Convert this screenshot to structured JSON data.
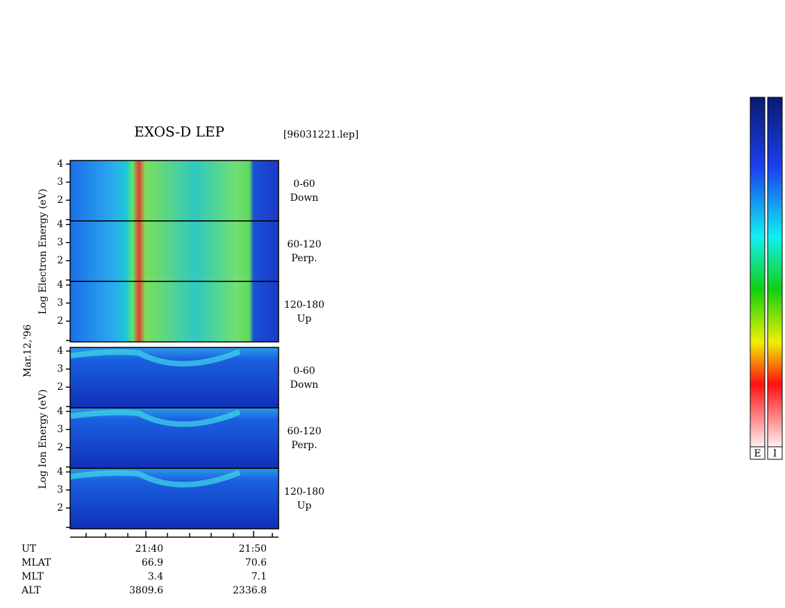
{
  "title": "EXOS-D LEP",
  "file": "[96031221.lep]",
  "date": "Mar.12,'96",
  "electron_axis_label": "Log  Electron  Energy (eV)",
  "ion_axis_label": "Log  Ion  Energy (eV)",
  "energy_axis": {
    "ylim": [
      0.85,
      4.2
    ],
    "yticks": [
      2,
      3,
      4
    ]
  },
  "panels": [
    {
      "species": "electron",
      "range": "0-60",
      "direction": "Down"
    },
    {
      "species": "electron",
      "range": "60-120",
      "direction": "Perp."
    },
    {
      "species": "electron",
      "range": "120-180",
      "direction": "Up"
    },
    {
      "species": "ion",
      "range": "0-60",
      "direction": "Down"
    },
    {
      "species": "ion",
      "range": "60-120",
      "direction": "Perp."
    },
    {
      "species": "ion",
      "range": "120-180",
      "direction": "Up"
    }
  ],
  "footer": [
    {
      "name": "UT",
      "values": [
        "21:40",
        "21:50"
      ]
    },
    {
      "name": "MLAT",
      "values": [
        66.9,
        70.6
      ]
    },
    {
      "name": "MLT",
      "values": [
        3.4,
        7.1
      ]
    },
    {
      "name": "ALT",
      "values": [
        3809.6,
        2336.8
      ]
    }
  ],
  "colorbars": [
    "E",
    "I"
  ]
}
